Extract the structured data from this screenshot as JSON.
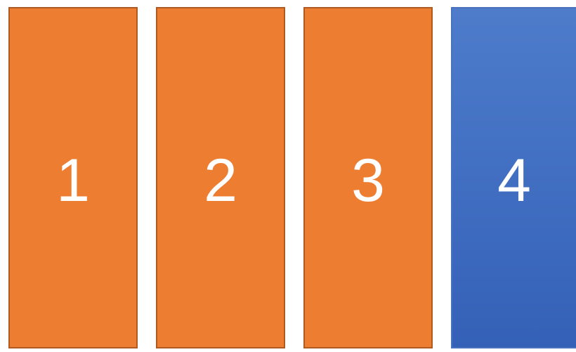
{
  "boxes": [
    {
      "label": "1"
    },
    {
      "label": "2"
    },
    {
      "label": "3"
    },
    {
      "label": "4"
    }
  ]
}
